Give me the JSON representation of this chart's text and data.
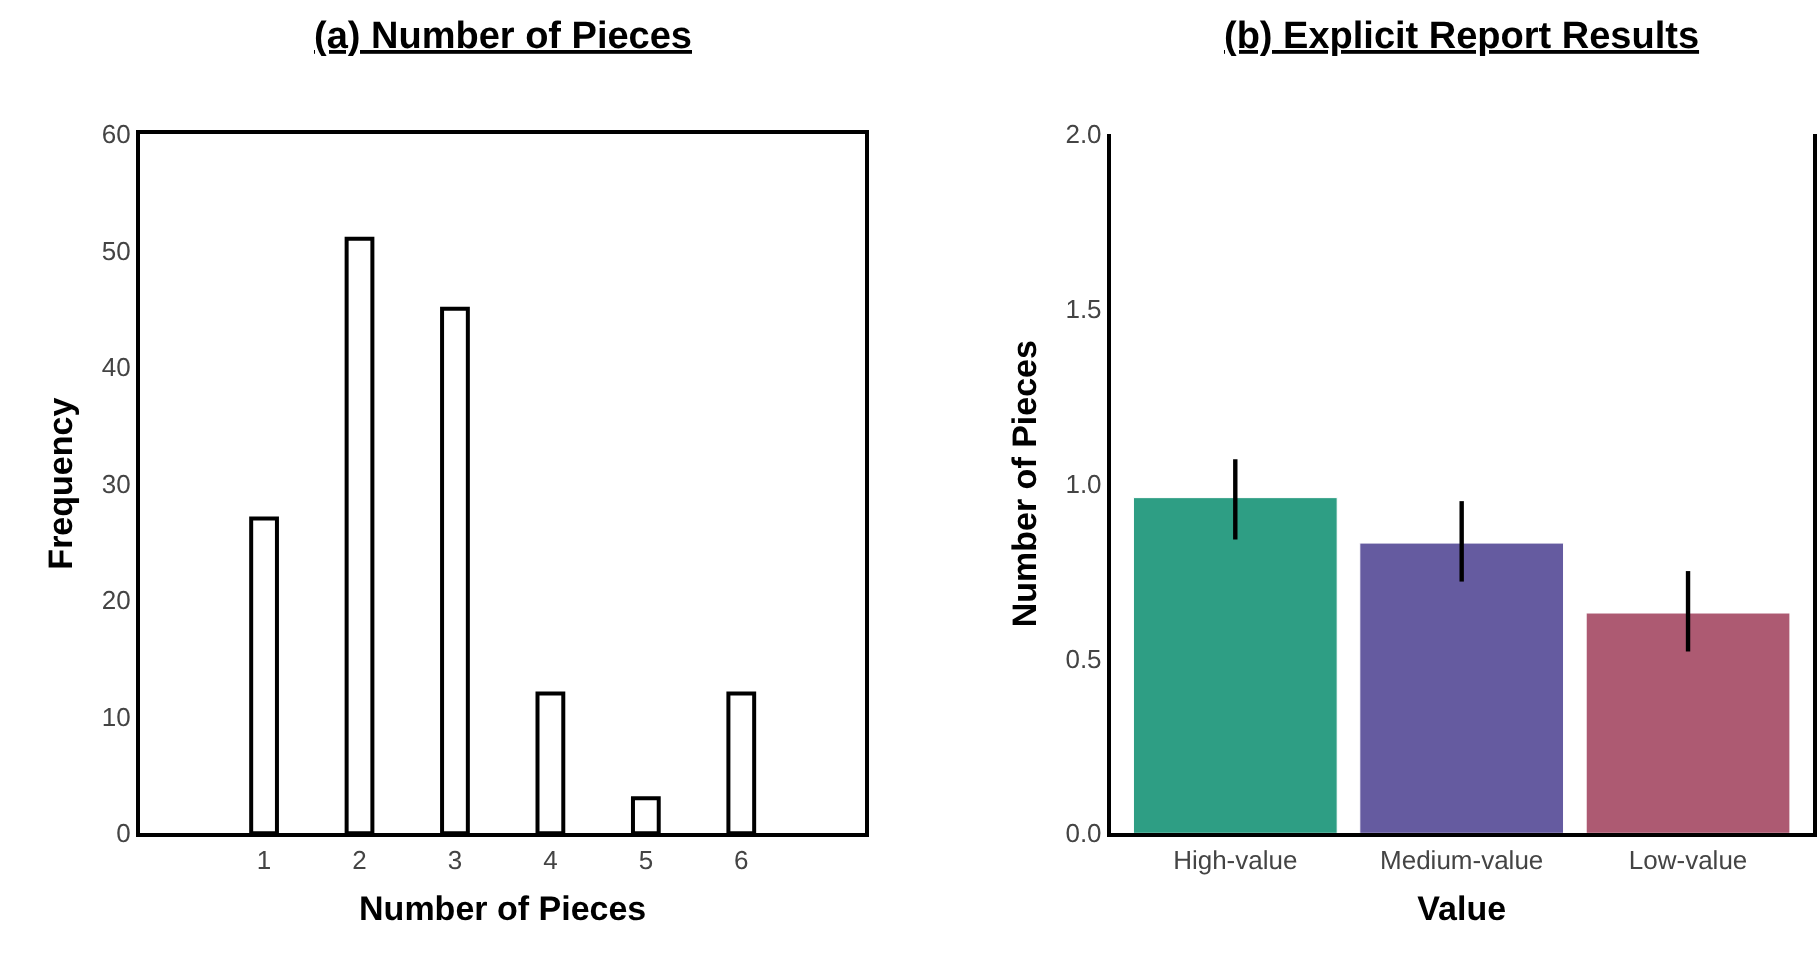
{
  "chart_data": [
    {
      "type": "bar",
      "title": "(a) Number of Pieces",
      "xlabel": "Number of Pieces",
      "ylabel": "Frequency",
      "x": [
        1,
        2,
        3,
        4,
        5,
        6
      ],
      "values": [
        27,
        51,
        45,
        12,
        3,
        12
      ],
      "color": "#ffffff",
      "xlim": [
        -0.3,
        7.3
      ],
      "xticks": [
        1,
        2,
        3,
        4,
        5,
        6
      ],
      "ylim": [
        0,
        60
      ],
      "yticks": [
        0,
        10,
        20,
        30,
        40,
        50,
        60
      ]
    },
    {
      "type": "bar",
      "title": "(b) Explicit Report Results",
      "xlabel": "Value",
      "ylabel": "Number of Pieces",
      "categories": [
        "High-value",
        "Medium-value",
        "Low-value"
      ],
      "values": [
        0.96,
        0.83,
        0.63
      ],
      "colors": [
        "#2e9e84",
        "#655ba0",
        "#ad5a72"
      ],
      "errors": [
        [
          0.84,
          1.07
        ],
        [
          0.72,
          0.95
        ],
        [
          0.52,
          0.75
        ]
      ],
      "ylim": [
        0,
        2.0
      ],
      "yticks": [
        {
          "value": 0,
          "label": "0.0"
        },
        0.5,
        {
          "value": 1,
          "label": "1.0"
        },
        1.5,
        {
          "value": 2,
          "label": "2.0"
        }
      ]
    }
  ]
}
